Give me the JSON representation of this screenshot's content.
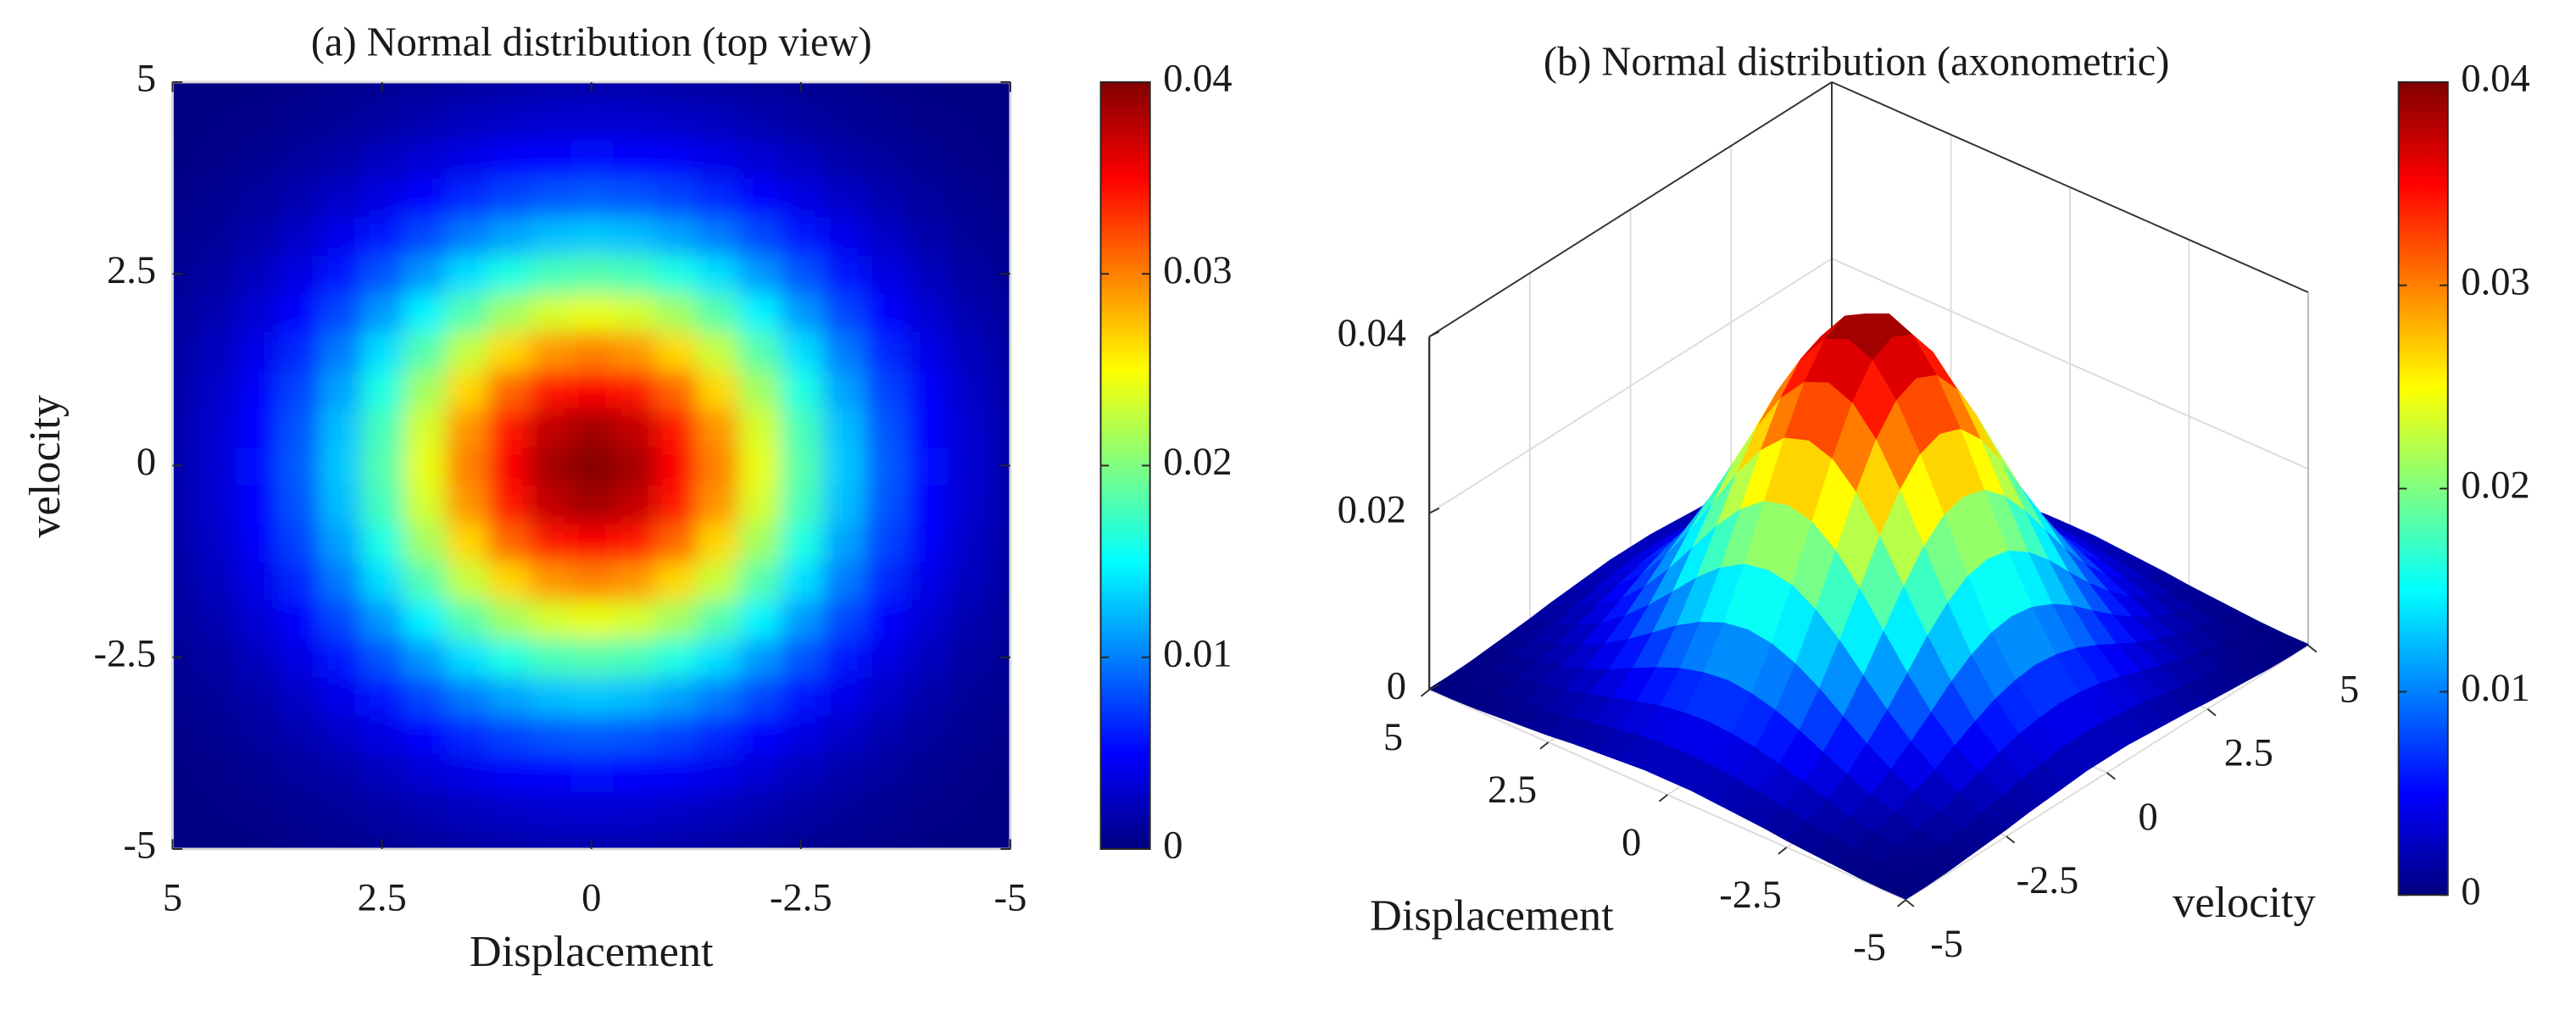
{
  "chart_data": [
    {
      "type": "heatmap",
      "title": "(a) Normal distribution (top view)",
      "xlabel": "Displacement",
      "ylabel": "velocity",
      "x": [
        -5,
        -4.5,
        -4,
        -3.5,
        -3,
        -2.5,
        -2,
        -1.5,
        -1,
        -0.5,
        0,
        0.5,
        1,
        1.5,
        2,
        2.5,
        3,
        3.5,
        4,
        4.5,
        5
      ],
      "y": [
        -5,
        -4.5,
        -4,
        -3.5,
        -3,
        -2.5,
        -2,
        -1.5,
        -1,
        -0.5,
        0,
        0.5,
        1,
        1.5,
        2,
        2.5,
        3,
        3.5,
        4,
        4.5,
        5
      ],
      "z": [
        [
          0.0001,
          0.0001,
          0.0002,
          0.0004,
          0.0006,
          0.0008,
          0.0011,
          0.0013,
          0.0015,
          0.0017,
          0.0017,
          0.0017,
          0.0015,
          0.0013,
          0.0011,
          0.0008,
          0.0006,
          0.0004,
          0.0002,
          0.0001,
          0.0001
        ],
        [
          0.0001,
          0.0003,
          0.0004,
          0.0007,
          0.001,
          0.0014,
          0.0019,
          0.0024,
          0.0028,
          0.0031,
          0.0032,
          0.0031,
          0.0028,
          0.0024,
          0.0019,
          0.0014,
          0.001,
          0.0007,
          0.0004,
          0.0003,
          0.0001
        ],
        [
          0.0002,
          0.0004,
          0.0007,
          0.0012,
          0.0017,
          0.0025,
          0.0033,
          0.0041,
          0.0048,
          0.0052,
          0.0054,
          0.0052,
          0.0048,
          0.0041,
          0.0033,
          0.0025,
          0.0017,
          0.0012,
          0.0007,
          0.0004,
          0.0002
        ],
        [
          0.0004,
          0.0007,
          0.0012,
          0.0019,
          0.0028,
          0.0039,
          0.0052,
          0.0065,
          0.0076,
          0.0083,
          0.0086,
          0.0083,
          0.0076,
          0.0065,
          0.0052,
          0.0039,
          0.0028,
          0.0019,
          0.0012,
          0.0007,
          0.0004
        ],
        [
          0.0006,
          0.001,
          0.0017,
          0.0028,
          0.0042,
          0.0059,
          0.0078,
          0.0098,
          0.0114,
          0.0125,
          0.0129,
          0.0125,
          0.0114,
          0.0098,
          0.0078,
          0.0059,
          0.0042,
          0.0028,
          0.0017,
          0.001,
          0.0006
        ],
        [
          0.0008,
          0.0014,
          0.0025,
          0.0039,
          0.0059,
          0.0083,
          0.011,
          0.0138,
          0.0161,
          0.0177,
          0.0182,
          0.0177,
          0.0161,
          0.0138,
          0.011,
          0.0083,
          0.0059,
          0.0039,
          0.0025,
          0.0014,
          0.0008
        ],
        [
          0.0011,
          0.0019,
          0.0033,
          0.0052,
          0.0078,
          0.011,
          0.0146,
          0.0182,
          0.0213,
          0.0234,
          0.0241,
          0.0234,
          0.0213,
          0.0182,
          0.0146,
          0.011,
          0.0078,
          0.0052,
          0.0033,
          0.0019,
          0.0011
        ],
        [
          0.0013,
          0.0024,
          0.0041,
          0.0065,
          0.0098,
          0.0138,
          0.0182,
          0.0227,
          0.0265,
          0.0291,
          0.03,
          0.0291,
          0.0265,
          0.0227,
          0.0182,
          0.0138,
          0.0098,
          0.0065,
          0.0041,
          0.0024,
          0.0013
        ],
        [
          0.0015,
          0.0028,
          0.0048,
          0.0076,
          0.0114,
          0.0161,
          0.0213,
          0.0265,
          0.031,
          0.034,
          0.0351,
          0.034,
          0.031,
          0.0265,
          0.0213,
          0.0161,
          0.0114,
          0.0076,
          0.0048,
          0.0028,
          0.0015
        ],
        [
          0.0017,
          0.0031,
          0.0052,
          0.0083,
          0.0125,
          0.0177,
          0.0234,
          0.0291,
          0.034,
          0.0374,
          0.0386,
          0.0374,
          0.034,
          0.0291,
          0.0234,
          0.0177,
          0.0125,
          0.0083,
          0.0052,
          0.0031,
          0.0017
        ],
        [
          0.0017,
          0.0032,
          0.0054,
          0.0086,
          0.0129,
          0.0182,
          0.0241,
          0.03,
          0.0351,
          0.0386,
          0.0398,
          0.0386,
          0.0351,
          0.03,
          0.0241,
          0.0182,
          0.0129,
          0.0086,
          0.0054,
          0.0032,
          0.0017
        ],
        [
          0.0017,
          0.0031,
          0.0052,
          0.0083,
          0.0125,
          0.0177,
          0.0234,
          0.0291,
          0.034,
          0.0374,
          0.0386,
          0.0374,
          0.034,
          0.0291,
          0.0234,
          0.0177,
          0.0125,
          0.0083,
          0.0052,
          0.0031,
          0.0017
        ],
        [
          0.0015,
          0.0028,
          0.0048,
          0.0076,
          0.0114,
          0.0161,
          0.0213,
          0.0265,
          0.031,
          0.034,
          0.0351,
          0.034,
          0.031,
          0.0265,
          0.0213,
          0.0161,
          0.0114,
          0.0076,
          0.0048,
          0.0028,
          0.0015
        ],
        [
          0.0013,
          0.0024,
          0.0041,
          0.0065,
          0.0098,
          0.0138,
          0.0182,
          0.0227,
          0.0265,
          0.0291,
          0.03,
          0.0291,
          0.0265,
          0.0227,
          0.0182,
          0.0138,
          0.0098,
          0.0065,
          0.0041,
          0.0024,
          0.0013
        ],
        [
          0.0011,
          0.0019,
          0.0033,
          0.0052,
          0.0078,
          0.011,
          0.0146,
          0.0182,
          0.0213,
          0.0234,
          0.0241,
          0.0234,
          0.0213,
          0.0182,
          0.0146,
          0.011,
          0.0078,
          0.0052,
          0.0033,
          0.0019,
          0.0011
        ],
        [
          0.0008,
          0.0014,
          0.0025,
          0.0039,
          0.0059,
          0.0083,
          0.011,
          0.0138,
          0.0161,
          0.0177,
          0.0182,
          0.0177,
          0.0161,
          0.0138,
          0.011,
          0.0083,
          0.0059,
          0.0039,
          0.0025,
          0.0014,
          0.0008
        ],
        [
          0.0006,
          0.001,
          0.0017,
          0.0028,
          0.0042,
          0.0059,
          0.0078,
          0.0098,
          0.0114,
          0.0125,
          0.0129,
          0.0125,
          0.0114,
          0.0098,
          0.0078,
          0.0059,
          0.0042,
          0.0028,
          0.0017,
          0.001,
          0.0006
        ],
        [
          0.0004,
          0.0007,
          0.0012,
          0.0019,
          0.0028,
          0.0039,
          0.0052,
          0.0065,
          0.0076,
          0.0083,
          0.0086,
          0.0083,
          0.0076,
          0.0065,
          0.0052,
          0.0039,
          0.0028,
          0.0019,
          0.0012,
          0.0007,
          0.0004
        ],
        [
          0.0002,
          0.0004,
          0.0007,
          0.0012,
          0.0017,
          0.0025,
          0.0033,
          0.0041,
          0.0048,
          0.0052,
          0.0054,
          0.0052,
          0.0048,
          0.0041,
          0.0033,
          0.0025,
          0.0017,
          0.0012,
          0.0007,
          0.0004,
          0.0002
        ],
        [
          0.0001,
          0.0003,
          0.0004,
          0.0007,
          0.001,
          0.0014,
          0.0019,
          0.0024,
          0.0028,
          0.0031,
          0.0032,
          0.0031,
          0.0028,
          0.0024,
          0.0019,
          0.0014,
          0.001,
          0.0007,
          0.0004,
          0.0003,
          0.0001
        ],
        [
          0.0001,
          0.0001,
          0.0002,
          0.0004,
          0.0006,
          0.0008,
          0.0011,
          0.0013,
          0.0015,
          0.0017,
          0.0017,
          0.0017,
          0.0015,
          0.0013,
          0.0011,
          0.0008,
          0.0006,
          0.0004,
          0.0002,
          0.0001,
          0.0001
        ]
      ],
      "xlim": [
        5,
        -5
      ],
      "ylim": [
        -5,
        5
      ],
      "xticks": [
        5,
        2.5,
        0,
        -2.5,
        -5
      ],
      "yticks": [
        -5,
        -2.5,
        0,
        2.5,
        5
      ],
      "colormap": "jet",
      "clim": [
        0,
        0.04
      ],
      "cticks": [
        0,
        0.01,
        0.02,
        0.03,
        0.04
      ]
    },
    {
      "type": "surface",
      "title": "(b) Normal distribution (axonometric)",
      "xlabel": "Displacement",
      "ylabel": "velocity",
      "x": [
        -5,
        -4.5,
        -4,
        -3.5,
        -3,
        -2.5,
        -2,
        -1.5,
        -1,
        -0.5,
        0,
        0.5,
        1,
        1.5,
        2,
        2.5,
        3,
        3.5,
        4,
        4.5,
        5
      ],
      "y": [
        -5,
        -4.5,
        -4,
        -3.5,
        -3,
        -2.5,
        -2,
        -1.5,
        -1,
        -0.5,
        0,
        0.5,
        1,
        1.5,
        2,
        2.5,
        3,
        3.5,
        4,
        4.5,
        5
      ],
      "z": [
        [
          0.0001,
          0.0001,
          0.0002,
          0.0004,
          0.0006,
          0.0008,
          0.0011,
          0.0013,
          0.0015,
          0.0017,
          0.0017,
          0.0017,
          0.0015,
          0.0013,
          0.0011,
          0.0008,
          0.0006,
          0.0004,
          0.0002,
          0.0001,
          0.0001
        ],
        [
          0.0001,
          0.0003,
          0.0004,
          0.0007,
          0.001,
          0.0014,
          0.0019,
          0.0024,
          0.0028,
          0.0031,
          0.0032,
          0.0031,
          0.0028,
          0.0024,
          0.0019,
          0.0014,
          0.001,
          0.0007,
          0.0004,
          0.0003,
          0.0001
        ],
        [
          0.0002,
          0.0004,
          0.0007,
          0.0012,
          0.0017,
          0.0025,
          0.0033,
          0.0041,
          0.0048,
          0.0052,
          0.0054,
          0.0052,
          0.0048,
          0.0041,
          0.0033,
          0.0025,
          0.0017,
          0.0012,
          0.0007,
          0.0004,
          0.0002
        ],
        [
          0.0004,
          0.0007,
          0.0012,
          0.0019,
          0.0028,
          0.0039,
          0.0052,
          0.0065,
          0.0076,
          0.0083,
          0.0086,
          0.0083,
          0.0076,
          0.0065,
          0.0052,
          0.0039,
          0.0028,
          0.0019,
          0.0012,
          0.0007,
          0.0004
        ],
        [
          0.0006,
          0.001,
          0.0017,
          0.0028,
          0.0042,
          0.0059,
          0.0078,
          0.0098,
          0.0114,
          0.0125,
          0.0129,
          0.0125,
          0.0114,
          0.0098,
          0.0078,
          0.0059,
          0.0042,
          0.0028,
          0.0017,
          0.001,
          0.0006
        ],
        [
          0.0008,
          0.0014,
          0.0025,
          0.0039,
          0.0059,
          0.0083,
          0.011,
          0.0138,
          0.0161,
          0.0177,
          0.0182,
          0.0177,
          0.0161,
          0.0138,
          0.011,
          0.0083,
          0.0059,
          0.0039,
          0.0025,
          0.0014,
          0.0008
        ],
        [
          0.0011,
          0.0019,
          0.0033,
          0.0052,
          0.0078,
          0.011,
          0.0146,
          0.0182,
          0.0213,
          0.0234,
          0.0241,
          0.0234,
          0.0213,
          0.0182,
          0.0146,
          0.011,
          0.0078,
          0.0052,
          0.0033,
          0.0019,
          0.0011
        ],
        [
          0.0013,
          0.0024,
          0.0041,
          0.0065,
          0.0098,
          0.0138,
          0.0182,
          0.0227,
          0.0265,
          0.0291,
          0.03,
          0.0291,
          0.0265,
          0.0227,
          0.0182,
          0.0138,
          0.0098,
          0.0065,
          0.0041,
          0.0024,
          0.0013
        ],
        [
          0.0015,
          0.0028,
          0.0048,
          0.0076,
          0.0114,
          0.0161,
          0.0213,
          0.0265,
          0.031,
          0.034,
          0.0351,
          0.034,
          0.031,
          0.0265,
          0.0213,
          0.0161,
          0.0114,
          0.0076,
          0.0048,
          0.0028,
          0.0015
        ],
        [
          0.0017,
          0.0031,
          0.0052,
          0.0083,
          0.0125,
          0.0177,
          0.0234,
          0.0291,
          0.034,
          0.0374,
          0.0386,
          0.0374,
          0.034,
          0.0291,
          0.0234,
          0.0177,
          0.0125,
          0.0083,
          0.0052,
          0.0031,
          0.0017
        ],
        [
          0.0017,
          0.0032,
          0.0054,
          0.0086,
          0.0129,
          0.0182,
          0.0241,
          0.03,
          0.0351,
          0.0386,
          0.0398,
          0.0386,
          0.0351,
          0.03,
          0.0241,
          0.0182,
          0.0129,
          0.0086,
          0.0054,
          0.0032,
          0.0017
        ],
        [
          0.0017,
          0.0031,
          0.0052,
          0.0083,
          0.0125,
          0.0177,
          0.0234,
          0.0291,
          0.034,
          0.0374,
          0.0386,
          0.0374,
          0.034,
          0.0291,
          0.0234,
          0.0177,
          0.0125,
          0.0083,
          0.0052,
          0.0031,
          0.0017
        ],
        [
          0.0015,
          0.0028,
          0.0048,
          0.0076,
          0.0114,
          0.0161,
          0.0213,
          0.0265,
          0.031,
          0.034,
          0.0351,
          0.034,
          0.031,
          0.0265,
          0.0213,
          0.0161,
          0.0114,
          0.0076,
          0.0048,
          0.0028,
          0.0015
        ],
        [
          0.0013,
          0.0024,
          0.0041,
          0.0065,
          0.0098,
          0.0138,
          0.0182,
          0.0227,
          0.0265,
          0.0291,
          0.03,
          0.0291,
          0.0265,
          0.0227,
          0.0182,
          0.0138,
          0.0098,
          0.0065,
          0.0041,
          0.0024,
          0.0013
        ],
        [
          0.0011,
          0.0019,
          0.0033,
          0.0052,
          0.0078,
          0.011,
          0.0146,
          0.0182,
          0.0213,
          0.0234,
          0.0241,
          0.0234,
          0.0213,
          0.0182,
          0.0146,
          0.011,
          0.0078,
          0.0052,
          0.0033,
          0.0019,
          0.0011
        ],
        [
          0.0008,
          0.0014,
          0.0025,
          0.0039,
          0.0059,
          0.0083,
          0.011,
          0.0138,
          0.0161,
          0.0177,
          0.0182,
          0.0177,
          0.0161,
          0.0138,
          0.011,
          0.0083,
          0.0059,
          0.0039,
          0.0025,
          0.0014,
          0.0008
        ],
        [
          0.0006,
          0.001,
          0.0017,
          0.0028,
          0.0042,
          0.0059,
          0.0078,
          0.0098,
          0.0114,
          0.0125,
          0.0129,
          0.0125,
          0.0114,
          0.0098,
          0.0078,
          0.0059,
          0.0042,
          0.0028,
          0.0017,
          0.001,
          0.0006
        ],
        [
          0.0004,
          0.0007,
          0.0012,
          0.0019,
          0.0028,
          0.0039,
          0.0052,
          0.0065,
          0.0076,
          0.0083,
          0.0086,
          0.0083,
          0.0076,
          0.0065,
          0.0052,
          0.0039,
          0.0028,
          0.0019,
          0.0012,
          0.0007,
          0.0004
        ],
        [
          0.0002,
          0.0004,
          0.0007,
          0.0012,
          0.0017,
          0.0025,
          0.0033,
          0.0041,
          0.0048,
          0.0052,
          0.0054,
          0.0052,
          0.0048,
          0.0041,
          0.0033,
          0.0025,
          0.0017,
          0.0012,
          0.0007,
          0.0004,
          0.0002
        ],
        [
          0.0001,
          0.0003,
          0.0004,
          0.0007,
          0.001,
          0.0014,
          0.0019,
          0.0024,
          0.0028,
          0.0031,
          0.0032,
          0.0031,
          0.0028,
          0.0024,
          0.0019,
          0.0014,
          0.001,
          0.0007,
          0.0004,
          0.0003,
          0.0001
        ],
        [
          0.0001,
          0.0001,
          0.0002,
          0.0004,
          0.0006,
          0.0008,
          0.0011,
          0.0013,
          0.0015,
          0.0017,
          0.0017,
          0.0017,
          0.0015,
          0.0013,
          0.0011,
          0.0008,
          0.0006,
          0.0004,
          0.0002,
          0.0001,
          0.0001
        ]
      ],
      "xlim": [
        5,
        -5
      ],
      "ylim": [
        -5,
        5
      ],
      "zlim": [
        0,
        0.04
      ],
      "xticks": [
        5,
        2.5,
        0,
        -2.5,
        -5
      ],
      "yticks": [
        -5,
        -2.5,
        0,
        2.5,
        5
      ],
      "zticks": [
        0,
        0.02,
        0.04
      ],
      "grid": true,
      "colormap": "jet",
      "clim": [
        0,
        0.04
      ],
      "cticks": [
        0,
        0.01,
        0.02,
        0.03,
        0.04
      ]
    }
  ]
}
